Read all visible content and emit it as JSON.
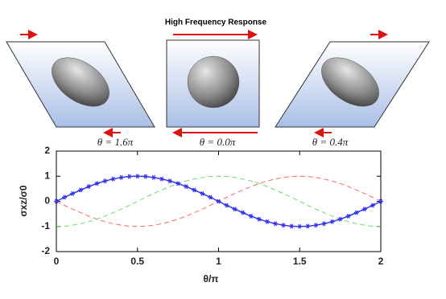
{
  "chart_data": {
    "type": "line",
    "title": "High Frequency Response",
    "annotations": [
      "θ = 1.6π",
      "θ = 0.0π",
      "θ = 0.4π"
    ],
    "x_label": "θ/π",
    "y_label": "σxz/σ0",
    "x": [
      0,
      0.05,
      0.1,
      0.15,
      0.2,
      0.25,
      0.3,
      0.35,
      0.4,
      0.45,
      0.5,
      0.55,
      0.6,
      0.65,
      0.7,
      0.75,
      0.8,
      0.85,
      0.9,
      0.95,
      1,
      1.05,
      1.1,
      1.15,
      1.2,
      1.25,
      1.3,
      1.35,
      1.4,
      1.45,
      1.5,
      1.55,
      1.6,
      1.65,
      1.7,
      1.75,
      1.8,
      1.85,
      1.9,
      1.95,
      2
    ],
    "series": [
      {
        "color": "#ff6666",
        "dashed": true,
        "markers": false,
        "values": [
          0,
          -0.16,
          -0.31,
          -0.45,
          -0.59,
          -0.71,
          -0.81,
          -0.89,
          -0.95,
          -0.99,
          -1,
          -0.99,
          -0.95,
          -0.89,
          -0.81,
          -0.71,
          -0.59,
          -0.45,
          -0.31,
          -0.16,
          0,
          0.16,
          0.31,
          0.45,
          0.59,
          0.71,
          0.81,
          0.89,
          0.95,
          0.99,
          1,
          0.99,
          0.95,
          0.89,
          0.81,
          0.71,
          0.59,
          0.45,
          0.31,
          0.16,
          0
        ]
      },
      {
        "color": "#66dd66",
        "dashed": true,
        "markers": false,
        "values": [
          -1,
          -0.99,
          -0.95,
          -0.89,
          -0.81,
          -0.71,
          -0.59,
          -0.45,
          -0.31,
          -0.16,
          0,
          0.16,
          0.31,
          0.45,
          0.59,
          0.71,
          0.81,
          0.89,
          0.95,
          0.99,
          1,
          0.99,
          0.95,
          0.89,
          0.81,
          0.71,
          0.59,
          0.45,
          0.31,
          0.16,
          0,
          -0.16,
          -0.31,
          -0.45,
          -0.59,
          -0.71,
          -0.81,
          -0.89,
          -0.95,
          -0.99,
          -1
        ]
      },
      {
        "color": "#3333ee",
        "dashed": false,
        "markers": true,
        "values": [
          0,
          0.16,
          0.31,
          0.45,
          0.59,
          0.71,
          0.81,
          0.89,
          0.95,
          0.99,
          1,
          0.99,
          0.95,
          0.89,
          0.81,
          0.71,
          0.59,
          0.45,
          0.31,
          0.16,
          0,
          -0.16,
          -0.31,
          -0.45,
          -0.59,
          -0.71,
          -0.81,
          -0.89,
          -0.95,
          -0.99,
          -1,
          -0.99,
          -0.95,
          -0.89,
          -0.81,
          -0.71,
          -0.59,
          -0.45,
          -0.31,
          -0.16,
          0
        ]
      }
    ],
    "xlim": [
      0,
      2
    ],
    "xticks": [
      0,
      0.5,
      1,
      1.5,
      2
    ],
    "ylim": [
      -2,
      2
    ],
    "yticks": [
      -2,
      -1,
      0,
      1,
      2
    ],
    "grid": false
  }
}
